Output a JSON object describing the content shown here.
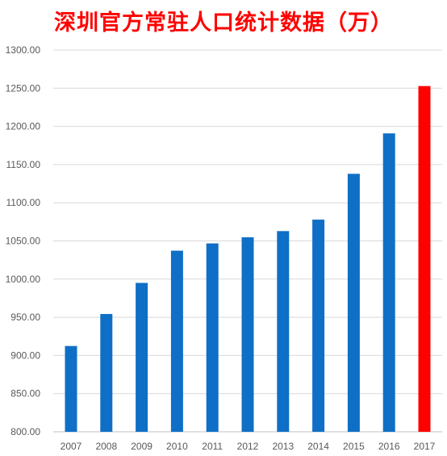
{
  "chart_data": {
    "type": "bar",
    "title": "深圳官方常驻人口统计数据（万）",
    "xlabel": "",
    "ylabel": "",
    "categories": [
      "2007",
      "2008",
      "2009",
      "2010",
      "2011",
      "2012",
      "2013",
      "2014",
      "2015",
      "2016",
      "2017"
    ],
    "values": [
      912.37,
      954.28,
      995.01,
      1037.2,
      1046.74,
      1054.74,
      1062.89,
      1077.89,
      1137.89,
      1190.84,
      1252.83
    ],
    "ylim": [
      800,
      1300
    ],
    "yticks": [
      "800.00",
      "850.00",
      "900.00",
      "950.00",
      "1000.00",
      "1050.00",
      "1100.00",
      "1150.00",
      "1200.00",
      "1250.00",
      "1300.00"
    ],
    "grid": true,
    "legend": "none",
    "colors": {
      "default_bar": "#0f6fc6",
      "highlight_bar": "#ff0000",
      "title": "#ff0000"
    },
    "highlight_category": "2017"
  }
}
